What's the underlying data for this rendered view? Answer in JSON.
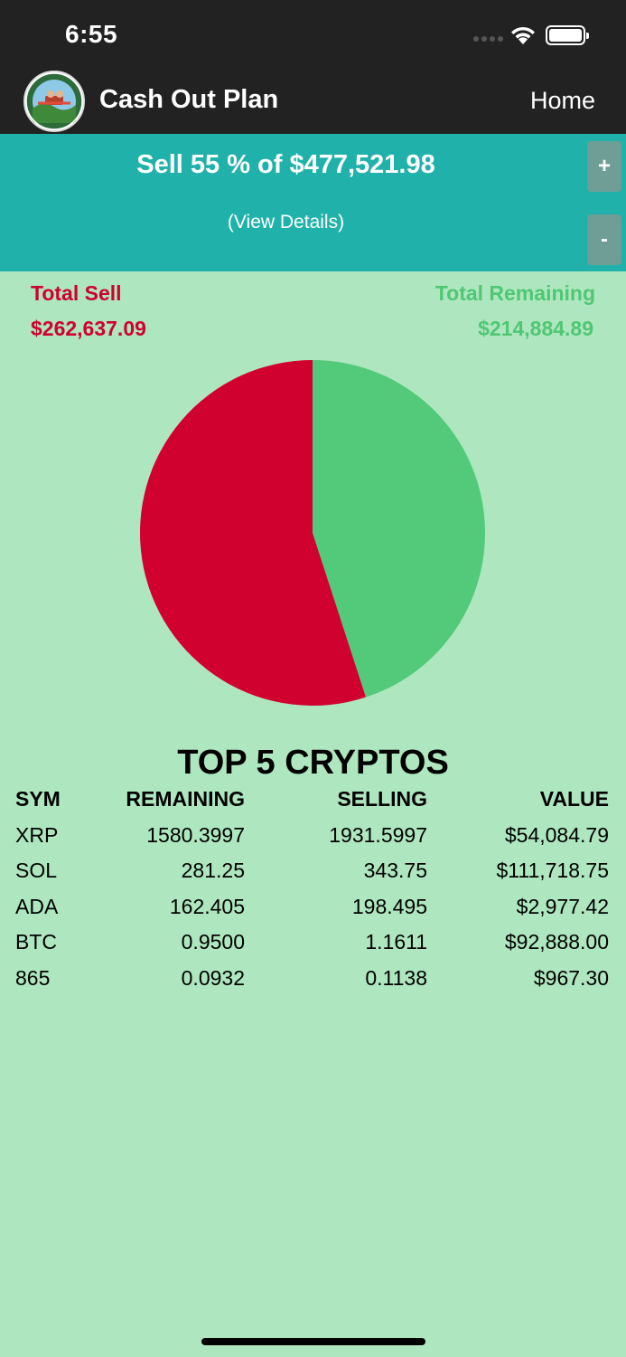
{
  "status_bar": {
    "time": "6:55",
    "icons": [
      "cellular-signal-icon",
      "wifi-icon",
      "battery-icon"
    ]
  },
  "nav": {
    "title": "Cash Out Plan",
    "home_label": "Home",
    "logo_icon": "app-logo-icon"
  },
  "sell_panel": {
    "headline": "Sell 55 % of $477,521.98",
    "details_link": "(View Details)",
    "plus_label": "+",
    "minus_label": "-",
    "background": "#20B2AA"
  },
  "totals": {
    "sell_label": "Total Sell",
    "sell_value": "$262,637.09",
    "remaining_label": "Total Remaining",
    "remaining_value": "$214,884.89",
    "sell_color": "#D0002F",
    "remaining_color": "#4FC774"
  },
  "chart_data": {
    "type": "pie",
    "values": [
      214884.89,
      262637.09
    ],
    "colors": [
      "#52CA79",
      "#D0002F"
    ]
  },
  "table": {
    "title": "TOP 5 CRYPTOS",
    "headers": [
      "SYM",
      "REMAINING",
      "SELLING",
      "VALUE"
    ],
    "rows": [
      [
        "XRP",
        "1580.3997",
        "1931.5997",
        "$54,084.79"
      ],
      [
        "SOL",
        "281.25",
        "343.75",
        "$111,718.75"
      ],
      [
        "ADA",
        "162.405",
        "198.495",
        "$2,977.42"
      ],
      [
        "BTC",
        "0.9500",
        "1.1611",
        "$92,888.00"
      ],
      [
        "865",
        "0.0932",
        "0.1138",
        "$967.30"
      ]
    ]
  }
}
